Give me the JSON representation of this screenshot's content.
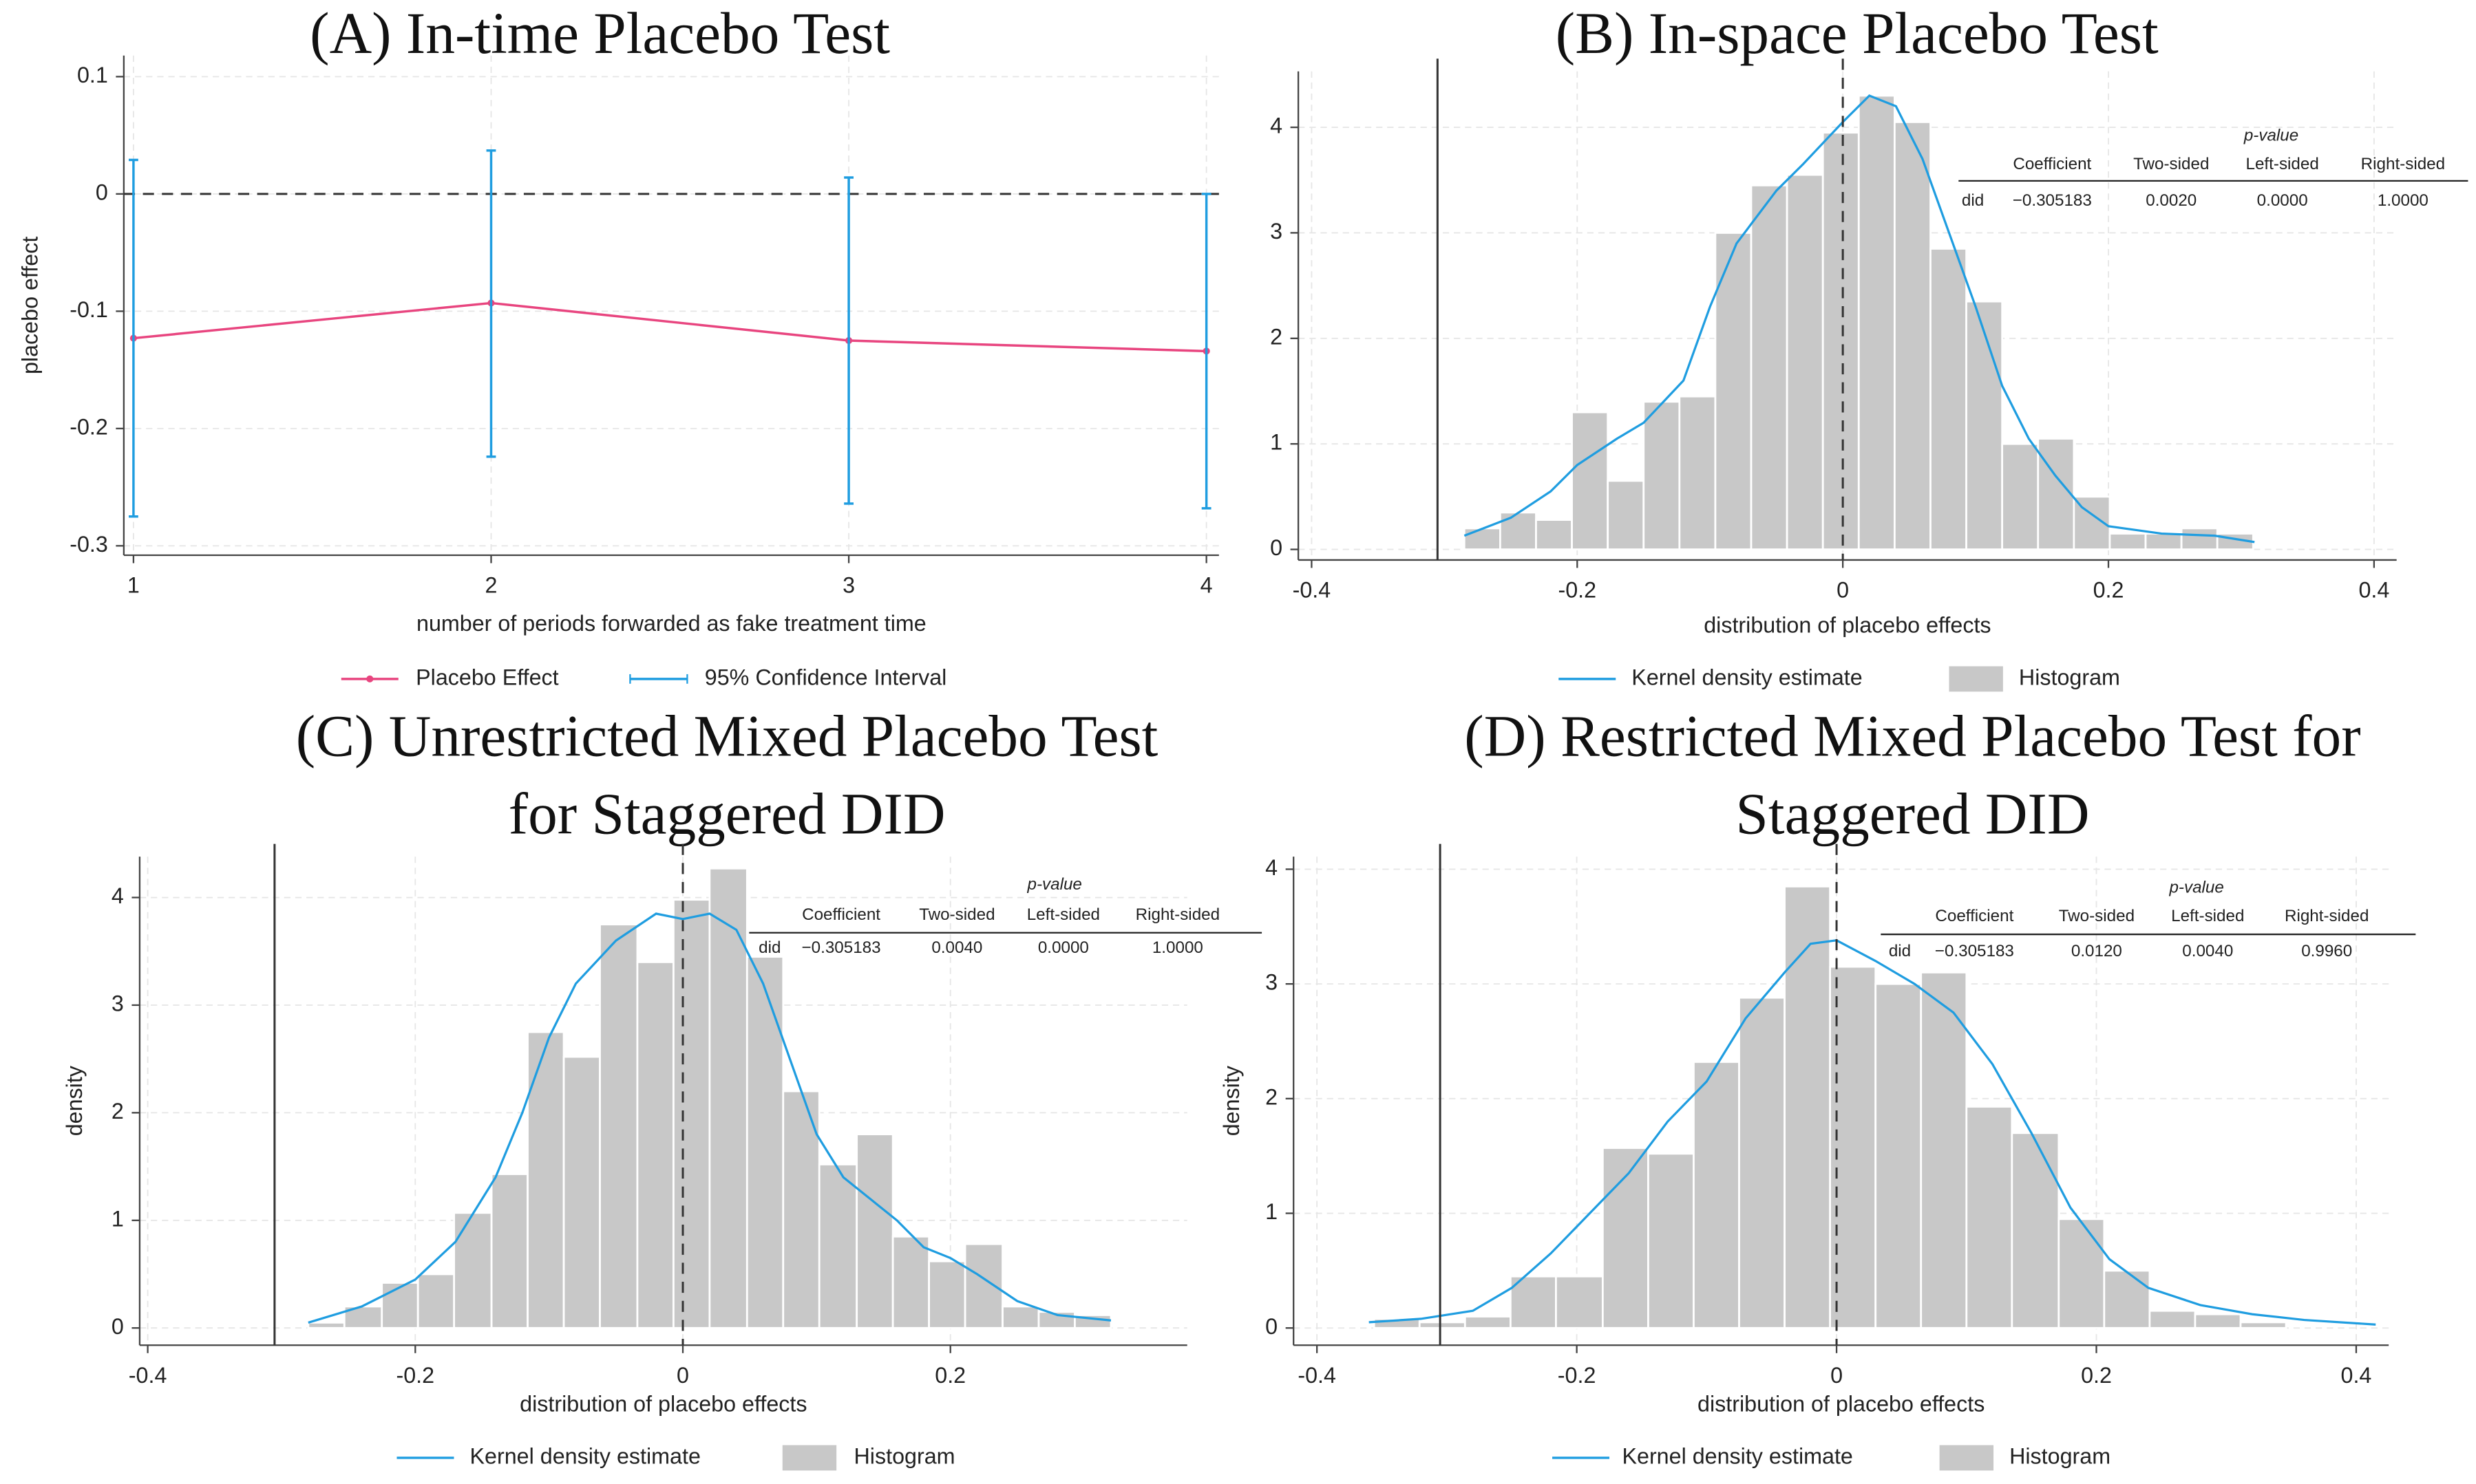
{
  "chart_data": [
    {
      "type": "line",
      "title": "(A) In-time Placebo Test",
      "xlabel": "number of periods forwarded as fake treatment time",
      "ylabel": "placebo effect",
      "x": [
        1,
        2,
        3,
        4
      ],
      "series": [
        {
          "name": "Placebo Effect",
          "color": "#e8457f",
          "values": [
            -0.123,
            -0.093,
            -0.125,
            -0.134
          ]
        },
        {
          "name": "95% Confidence Interval",
          "color": "#1f9de0",
          "lower": [
            -0.275,
            -0.224,
            -0.264,
            -0.268
          ],
          "upper": [
            0.029,
            0.037,
            0.014,
            0.0
          ]
        }
      ],
      "hline": {
        "value": 0,
        "style": "dashed"
      },
      "xlim": [
        0.973,
        4.035
      ],
      "xticks": [
        1,
        2,
        3,
        4
      ],
      "ylim": [
        -0.308,
        0.118
      ],
      "yticks": [
        -0.3,
        -0.2,
        -0.1,
        0,
        0.1
      ],
      "grid": true
    },
    {
      "type": "histogram",
      "title": "(B) In-space Placebo Test",
      "xlabel": "distribution of placebo effects",
      "series": [
        {
          "name": "Kernel density estimate",
          "color": "#1f9de0",
          "x": [
            -0.285,
            -0.25,
            -0.22,
            -0.2,
            -0.17,
            -0.15,
            -0.12,
            -0.1,
            -0.08,
            -0.05,
            -0.03,
            0,
            0.02,
            0.04,
            0.06,
            0.08,
            0.1,
            0.12,
            0.14,
            0.16,
            0.18,
            0.2,
            0.24,
            0.28,
            0.31
          ],
          "values": [
            0.13,
            0.3,
            0.55,
            0.8,
            1.05,
            1.2,
            1.6,
            2.3,
            2.9,
            3.4,
            3.65,
            4.05,
            4.3,
            4.2,
            3.7,
            3.0,
            2.3,
            1.55,
            1.05,
            0.7,
            0.4,
            0.22,
            0.15,
            0.13,
            0.07
          ]
        },
        {
          "name": "Histogram",
          "color": "#c8c8c8",
          "bins": [
            -0.285,
            -0.258,
            -0.231,
            -0.204,
            -0.177,
            -0.15,
            -0.123,
            -0.096,
            -0.069,
            -0.042,
            -0.015,
            0.012,
            0.039,
            0.066,
            0.093,
            0.12,
            0.147,
            0.174,
            0.201,
            0.228,
            0.255,
            0.282,
            0.309
          ],
          "values": [
            0.2,
            0.35,
            0.28,
            1.3,
            0.65,
            1.4,
            1.45,
            3.0,
            3.45,
            3.55,
            3.95,
            4.3,
            4.05,
            2.85,
            2.35,
            1.0,
            1.05,
            0.5,
            0.15,
            0.15,
            0.2,
            0.15
          ]
        }
      ],
      "vlines": [
        {
          "value": -0.305183,
          "style": "solid"
        },
        {
          "value": 0,
          "style": "dashed"
        }
      ],
      "table": {
        "title": "p-value",
        "columns": [
          "Coefficient",
          "Two-sided",
          "Left-sided",
          "Right-sided"
        ],
        "rows": [
          {
            "label": "did",
            "cells": [
              "−0.305183",
              "0.0020",
              "0.0000",
              "1.0000"
            ]
          }
        ]
      },
      "xlim": [
        -0.41,
        0.417
      ],
      "xticks": [
        -0.4,
        -0.2,
        0,
        0.2,
        0.4
      ],
      "ylim": [
        -0.1,
        4.53
      ],
      "yticks": [
        0,
        1,
        2,
        3,
        4
      ],
      "grid": true
    },
    {
      "type": "histogram",
      "title": [
        "(C) Unrestricted Mixed Placebo Test",
        "for Staggered DID"
      ],
      "xlabel": "distribution of placebo effects",
      "ylabel": "density",
      "series": [
        {
          "name": "Kernel density estimate",
          "color": "#1f9de0",
          "x": [
            -0.28,
            -0.24,
            -0.2,
            -0.17,
            -0.14,
            -0.12,
            -0.1,
            -0.08,
            -0.05,
            -0.02,
            0,
            0.02,
            0.04,
            0.06,
            0.08,
            0.1,
            0.12,
            0.14,
            0.16,
            0.18,
            0.2,
            0.22,
            0.25,
            0.28,
            0.32
          ],
          "values": [
            0.05,
            0.2,
            0.45,
            0.8,
            1.4,
            2.0,
            2.7,
            3.2,
            3.6,
            3.85,
            3.8,
            3.85,
            3.7,
            3.2,
            2.5,
            1.8,
            1.4,
            1.2,
            1.0,
            0.75,
            0.65,
            0.5,
            0.25,
            0.12,
            0.07
          ]
        },
        {
          "name": "Histogram",
          "color": "#c8c8c8",
          "bins": [
            -0.28,
            -0.253,
            -0.225,
            -0.198,
            -0.171,
            -0.143,
            -0.116,
            -0.089,
            -0.062,
            -0.034,
            -0.007,
            0.02,
            0.048,
            0.075,
            0.102,
            0.13,
            0.157,
            0.184,
            0.211,
            0.239,
            0.266,
            0.293,
            0.32
          ],
          "values": [
            0.05,
            0.2,
            0.42,
            0.5,
            1.07,
            1.43,
            2.75,
            2.52,
            3.75,
            3.4,
            3.98,
            4.27,
            3.45,
            2.2,
            1.52,
            1.8,
            0.85,
            0.62,
            0.78,
            0.2,
            0.15,
            0.12
          ]
        }
      ],
      "vlines": [
        {
          "value": -0.305183,
          "style": "solid"
        },
        {
          "value": 0,
          "style": "dashed"
        }
      ],
      "table": {
        "title": "p-value",
        "columns": [
          "Coefficient",
          "Two-sided",
          "Left-sided",
          "Right-sided"
        ],
        "rows": [
          {
            "label": "did",
            "cells": [
              "−0.305183",
              "0.0040",
              "0.0000",
              "1.0000"
            ]
          }
        ]
      },
      "xlim": [
        -0.406,
        0.377
      ],
      "xticks": [
        -0.4,
        -0.2,
        0,
        0.2
      ],
      "ylim": [
        -0.16,
        4.38
      ],
      "yticks": [
        0,
        1,
        2,
        3,
        4
      ],
      "grid": true
    },
    {
      "type": "histogram",
      "title": [
        "(D) Restricted Mixed Placebo Test for",
        "Staggered DID"
      ],
      "xlabel": "distribution of placebo effects",
      "ylabel": "density",
      "series": [
        {
          "name": "Kernel density estimate",
          "color": "#1f9de0",
          "x": [
            -0.36,
            -0.32,
            -0.28,
            -0.25,
            -0.22,
            -0.19,
            -0.16,
            -0.13,
            -0.1,
            -0.07,
            -0.04,
            -0.02,
            0,
            0.03,
            0.06,
            0.09,
            0.12,
            0.15,
            0.18,
            0.21,
            0.24,
            0.28,
            0.32,
            0.36,
            0.415
          ],
          "values": [
            0.05,
            0.08,
            0.15,
            0.35,
            0.65,
            1.0,
            1.35,
            1.8,
            2.15,
            2.7,
            3.1,
            3.35,
            3.38,
            3.2,
            3.0,
            2.75,
            2.3,
            1.7,
            1.05,
            0.6,
            0.35,
            0.2,
            0.12,
            0.07,
            0.03
          ]
        },
        {
          "name": "Histogram",
          "color": "#c8c8c8",
          "bins": [
            -0.356,
            -0.321,
            -0.286,
            -0.251,
            -0.216,
            -0.18,
            -0.145,
            -0.11,
            -0.075,
            -0.04,
            -0.005,
            0.03,
            0.065,
            0.1,
            0.135,
            0.171,
            0.206,
            0.241,
            0.276,
            0.311,
            0.346
          ],
          "values": [
            0.08,
            0.05,
            0.1,
            0.45,
            0.45,
            1.57,
            1.52,
            2.32,
            2.88,
            3.85,
            3.15,
            3.0,
            3.1,
            1.93,
            1.7,
            0.95,
            0.5,
            0.15,
            0.12,
            0.05
          ]
        }
      ],
      "vlines": [
        {
          "value": -0.305183,
          "style": "solid"
        },
        {
          "value": 0,
          "style": "dashed"
        }
      ],
      "table": {
        "title": "p-value",
        "columns": [
          "Coefficient",
          "Two-sided",
          "Left-sided",
          "Right-sided"
        ],
        "rows": [
          {
            "label": "did",
            "cells": [
              "−0.305183",
              "0.0120",
              "0.0040",
              "0.9960"
            ]
          }
        ]
      },
      "xlim": [
        -0.418,
        0.425
      ],
      "xticks": [
        -0.4,
        -0.2,
        0,
        0.2,
        0.4
      ],
      "ylim": [
        -0.15,
        4.11
      ],
      "yticks": [
        0,
        1,
        2,
        3,
        4
      ],
      "grid": true
    }
  ]
}
